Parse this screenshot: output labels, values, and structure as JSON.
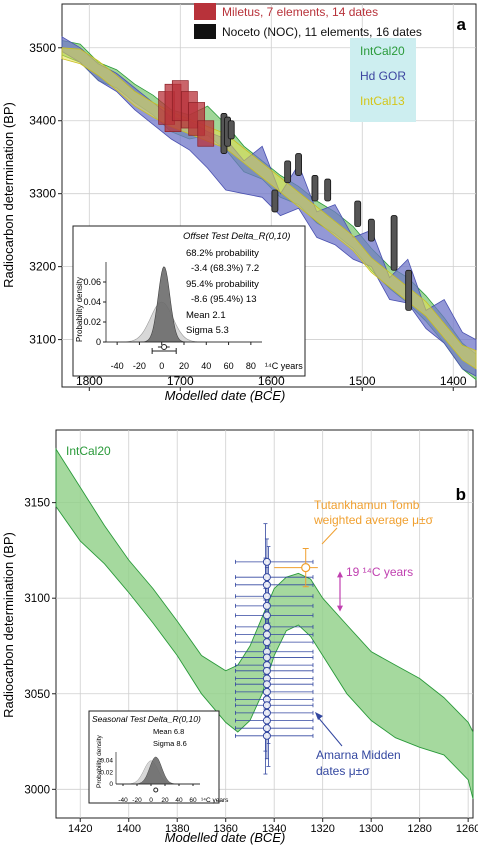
{
  "colors": {
    "intcal20_fill": "#8fcf86",
    "intcal20_line": "#2a9a3a",
    "hdgor_fill": "#6f76c8",
    "intcal13_fill": "#e6e04a",
    "miletus": "#b8323a",
    "noceto": "#555555",
    "amarna": "#3347a0",
    "tutankhamun": "#f0a030",
    "magenta": "#c040b0",
    "legend_bg": "#cdeef0"
  },
  "chart_data": [
    {
      "id": "a",
      "type": "line",
      "panel_label": "a",
      "xlabel": "Modelled date (BCE)",
      "ylabel": "Radiocarbon determination (BP)",
      "xlim": [
        1830,
        1375
      ],
      "ylim": [
        3035,
        3560
      ],
      "x_ticks": [
        1800,
        1700,
        1600,
        1500,
        1400
      ],
      "y_ticks": [
        3100,
        3200,
        3300,
        3400,
        3500
      ],
      "grid": true,
      "legend": [
        {
          "label": "Miletus, 7 elements, 14 dates",
          "color": "#b8323a"
        },
        {
          "label": "Noceto (NOC), 11 elements, 16 dates",
          "color": "#111111"
        }
      ],
      "curve_legend": [
        "IntCal20",
        "Hd GOR",
        "IntCal13"
      ],
      "series": [
        {
          "name": "IntCal20",
          "x": [
            1830,
            1810,
            1790,
            1770,
            1750,
            1730,
            1710,
            1690,
            1670,
            1650,
            1630,
            1610,
            1590,
            1570,
            1550,
            1530,
            1510,
            1490,
            1470,
            1450,
            1430,
            1410,
            1390,
            1375
          ],
          "upper": [
            3510,
            3505,
            3480,
            3470,
            3450,
            3435,
            3415,
            3408,
            3420,
            3395,
            3365,
            3345,
            3325,
            3310,
            3290,
            3275,
            3255,
            3225,
            3200,
            3185,
            3160,
            3130,
            3095,
            3080
          ],
          "lower": [
            3490,
            3480,
            3455,
            3445,
            3425,
            3408,
            3385,
            3375,
            3380,
            3360,
            3330,
            3320,
            3295,
            3285,
            3260,
            3245,
            3225,
            3195,
            3170,
            3150,
            3125,
            3095,
            3060,
            3045
          ]
        },
        {
          "name": "Hd GOR",
          "x": [
            1830,
            1810,
            1790,
            1770,
            1750,
            1730,
            1710,
            1690,
            1670,
            1650,
            1630,
            1610,
            1590,
            1570,
            1550,
            1530,
            1510,
            1490,
            1470,
            1450,
            1430,
            1410,
            1390,
            1375
          ],
          "upper": [
            3515,
            3500,
            3478,
            3465,
            3445,
            3425,
            3405,
            3400,
            3385,
            3375,
            3345,
            3365,
            3300,
            3340,
            3275,
            3285,
            3240,
            3250,
            3185,
            3210,
            3140,
            3155,
            3110,
            3100
          ],
          "lower": [
            3495,
            3480,
            3455,
            3440,
            3415,
            3395,
            3375,
            3360,
            3335,
            3305,
            3300,
            3295,
            3270,
            3280,
            3240,
            3230,
            3210,
            3200,
            3155,
            3150,
            3115,
            3095,
            3060,
            3050
          ]
        },
        {
          "name": "IntCal13",
          "x": [
            1830,
            1810,
            1790,
            1770,
            1750,
            1730,
            1710,
            1690,
            1670,
            1650,
            1630,
            1610,
            1590,
            1570,
            1550,
            1530,
            1510,
            1490,
            1470,
            1450,
            1430,
            1410,
            1390,
            1375
          ],
          "upper": [
            3500,
            3498,
            3482,
            3462,
            3440,
            3425,
            3412,
            3402,
            3392,
            3382,
            3362,
            3342,
            3322,
            3302,
            3282,
            3262,
            3242,
            3212,
            3192,
            3172,
            3152,
            3122,
            3092,
            3085
          ],
          "lower": [
            3485,
            3478,
            3462,
            3442,
            3420,
            3405,
            3392,
            3382,
            3372,
            3362,
            3342,
            3322,
            3302,
            3282,
            3262,
            3242,
            3222,
            3192,
            3172,
            3152,
            3132,
            3102,
            3072,
            3060
          ]
        }
      ],
      "miletus_boxes": [
        {
          "x": 1715,
          "low": 3395,
          "high": 3440
        },
        {
          "x": 1708,
          "low": 3385,
          "high": 3450
        },
        {
          "x": 1700,
          "low": 3400,
          "high": 3455
        },
        {
          "x": 1690,
          "low": 3390,
          "high": 3440
        },
        {
          "x": 1682,
          "low": 3380,
          "high": 3425
        },
        {
          "x": 1672,
          "low": 3365,
          "high": 3400
        }
      ],
      "noceto_bars": [
        {
          "x": 1652,
          "low": 3355,
          "high": 3410
        },
        {
          "x": 1648,
          "low": 3365,
          "high": 3405
        },
        {
          "x": 1644,
          "low": 3375,
          "high": 3400
        },
        {
          "x": 1596,
          "low": 3275,
          "high": 3305
        },
        {
          "x": 1582,
          "low": 3315,
          "high": 3345
        },
        {
          "x": 1570,
          "low": 3325,
          "high": 3355
        },
        {
          "x": 1552,
          "low": 3290,
          "high": 3325
        },
        {
          "x": 1538,
          "low": 3290,
          "high": 3320
        },
        {
          "x": 1505,
          "low": 3255,
          "high": 3290
        },
        {
          "x": 1490,
          "low": 3235,
          "high": 3265
        },
        {
          "x": 1465,
          "low": 3195,
          "high": 3270
        },
        {
          "x": 1449,
          "low": 3140,
          "high": 3195
        }
      ],
      "inset": {
        "title": "Offset Test Delta_R(0,10)",
        "lines": [
          "68.2% probability",
          "-3.4 (68.3%) 7.2",
          "95.4% probability",
          "-8.6 (95.4%) 13",
          "Mean 2.1",
          "Sigma 5.3"
        ],
        "ylabel": "Probability density",
        "xlabel": "¹⁴C years",
        "xlim": [
          -50,
          90
        ],
        "ylim": [
          0,
          0.08
        ],
        "x_ticks": [
          -40,
          -20,
          0,
          20,
          40,
          60,
          80
        ],
        "y_ticks": [
          0,
          0.02,
          0.04,
          0.06
        ],
        "prior": {
          "mean": 0,
          "sigma": 10
        },
        "posterior": {
          "mean": 2.1,
          "sigma": 5.3
        },
        "range_68": [
          -3.4,
          7.2
        ],
        "range_95": [
          -8.6,
          13
        ]
      }
    },
    {
      "id": "b",
      "type": "line",
      "panel_label": "b",
      "xlabel": "Modelled date (BCE)",
      "ylabel": "Radiocarbon determination (BP)",
      "xlim": [
        1430,
        1258
      ],
      "ylim": [
        2985,
        3188
      ],
      "x_ticks": [
        1420,
        1400,
        1380,
        1360,
        1340,
        1320,
        1300,
        1280,
        1260
      ],
      "y_ticks": [
        3000,
        3050,
        3100,
        3150
      ],
      "grid": true,
      "series": [
        {
          "name": "IntCal20",
          "x": [
            1430,
            1420,
            1410,
            1400,
            1390,
            1380,
            1370,
            1360,
            1355,
            1350,
            1345,
            1340,
            1335,
            1330,
            1325,
            1320,
            1310,
            1300,
            1290,
            1280,
            1270,
            1260,
            1258
          ],
          "upper": [
            3178,
            3158,
            3138,
            3120,
            3105,
            3088,
            3070,
            3062,
            3065,
            3075,
            3090,
            3105,
            3111,
            3113,
            3110,
            3100,
            3086,
            3072,
            3065,
            3058,
            3048,
            3035,
            3030
          ],
          "lower": [
            3148,
            3130,
            3118,
            3103,
            3087,
            3070,
            3050,
            3035,
            3030,
            3036,
            3050,
            3070,
            3083,
            3086,
            3080,
            3070,
            3050,
            3036,
            3027,
            3022,
            3018,
            3005,
            2995
          ]
        }
      ],
      "amarna": {
        "x": 1343,
        "values": [
          3119,
          3111,
          3107,
          3101,
          3096,
          3091,
          3085,
          3081,
          3077,
          3072,
          3069,
          3065,
          3062,
          3058,
          3055,
          3051,
          3047,
          3044,
          3040,
          3036,
          3032,
          3028
        ],
        "sigma": 20,
        "x_lo": 1356,
        "x_hi": 1324
      },
      "tutankhamun": {
        "label": [
          "Tutankhamun Tomb",
          "weighted average μ±σ"
        ],
        "x": 1327,
        "y": 3116,
        "y_sigma": 10,
        "x_lo": 1340,
        "x_hi": 1322
      },
      "range_label": "19 ¹⁴C years",
      "range": [
        3094,
        3113
      ],
      "amarna_label": [
        "Amarna Midden",
        "dates μ±σ"
      ],
      "series_label": "IntCal20",
      "inset": {
        "title": "Seasonal Test Delta_R(0,10)",
        "lines": [
          "Mean 6.8",
          "Sigma 8.6"
        ],
        "ylabel": "Probability density",
        "xlabel": "¹⁴C years",
        "xlim": [
          -50,
          70
        ],
        "ylim": [
          0,
          0.055
        ],
        "x_ticks": [
          -40,
          -20,
          0,
          20,
          40,
          60
        ],
        "y_ticks": [
          0,
          0.02,
          0.04
        ],
        "prior": {
          "mean": 0,
          "sigma": 10
        },
        "posterior": {
          "mean": 6.8,
          "sigma": 8.6
        }
      }
    }
  ]
}
